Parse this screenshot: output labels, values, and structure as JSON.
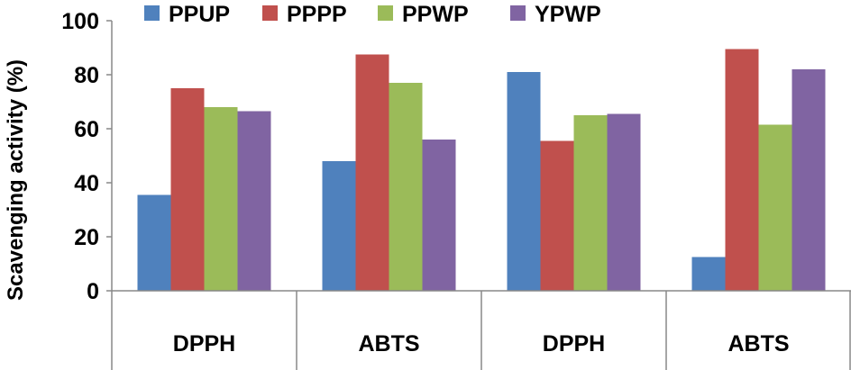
{
  "chart_data": {
    "type": "bar",
    "categories": [
      "DPPH",
      "ABTS",
      "DPPH",
      "ABTS"
    ],
    "series": [
      {
        "name": "PPUP",
        "color": "#4F81BD",
        "values": [
          35.5,
          48,
          81,
          12.5
        ]
      },
      {
        "name": "PPPP",
        "color": "#C0504D",
        "values": [
          75,
          87.5,
          55.5,
          89.5
        ]
      },
      {
        "name": "PPWP",
        "color": "#9BBB59",
        "values": [
          68,
          77,
          65,
          61.5
        ]
      },
      {
        "name": "YPWP",
        "color": "#8064A2",
        "values": [
          66.5,
          56,
          65.5,
          82
        ]
      }
    ],
    "ylabel": "Scavenging activity (%)",
    "xlabel": "",
    "ylim": [
      0,
      100
    ],
    "yticks": [
      0,
      20,
      40,
      60,
      80,
      100
    ],
    "grid": false,
    "legend_position": "top"
  }
}
